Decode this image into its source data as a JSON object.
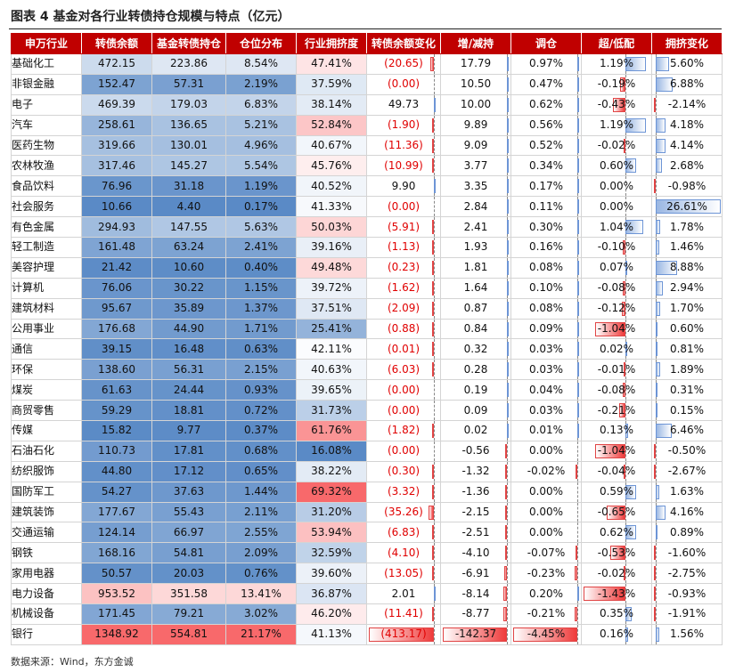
{
  "title": "图表 4  基金对各行业转债持仓规模与特点（亿元）",
  "source": "数据来源：Wind，东方金诚",
  "headers": [
    "申万行业",
    "转债余额",
    "基金转债持仓",
    "仓位分布",
    "行业拥挤度",
    "转债余额变化",
    "增/减持",
    "调仓",
    "超/低配",
    "拥挤变化"
  ],
  "rows": [
    {
      "name": "基础化工",
      "balance": "472.15",
      "holding": "223.86",
      "position": "8.54%",
      "crowd": "47.41%",
      "bal_chg": "(20.65)",
      "bal_chg_v": -20.65,
      "incdec": "17.79",
      "incdec_v": 17.79,
      "rebal": "0.97%",
      "rebal_v": 0.97,
      "over": "1.19%",
      "over_v": 1.19,
      "crowd_chg": "5.60%",
      "crowd_chg_v": 5.6
    },
    {
      "name": "非银金融",
      "balance": "152.47",
      "holding": "57.31",
      "position": "2.19%",
      "crowd": "37.59%",
      "bal_chg": "(0.00)",
      "bal_chg_v": 0,
      "incdec": "10.50",
      "incdec_v": 10.5,
      "rebal": "0.47%",
      "rebal_v": 0.47,
      "over": "-0.19%",
      "over_v": -0.19,
      "crowd_chg": "6.88%",
      "crowd_chg_v": 6.88
    },
    {
      "name": "电子",
      "balance": "469.39",
      "holding": "179.03",
      "position": "6.83%",
      "crowd": "38.14%",
      "bal_chg": "49.73",
      "bal_chg_v": 49.73,
      "incdec": "10.00",
      "incdec_v": 10.0,
      "rebal": "0.62%",
      "rebal_v": 0.62,
      "over": "-0.43%",
      "over_v": -0.43,
      "crowd_chg": "-2.14%",
      "crowd_chg_v": -2.14
    },
    {
      "name": "汽车",
      "balance": "258.61",
      "holding": "136.65",
      "position": "5.21%",
      "crowd": "52.84%",
      "bal_chg": "(1.90)",
      "bal_chg_v": -1.9,
      "incdec": "9.89",
      "incdec_v": 9.89,
      "rebal": "0.56%",
      "rebal_v": 0.56,
      "over": "1.19%",
      "over_v": 1.19,
      "crowd_chg": "4.18%",
      "crowd_chg_v": 4.18
    },
    {
      "name": "医药生物",
      "balance": "319.66",
      "holding": "130.01",
      "position": "4.96%",
      "crowd": "40.67%",
      "bal_chg": "(11.36)",
      "bal_chg_v": -11.36,
      "incdec": "9.09",
      "incdec_v": 9.09,
      "rebal": "0.52%",
      "rebal_v": 0.52,
      "over": "-0.02%",
      "over_v": -0.02,
      "crowd_chg": "4.14%",
      "crowd_chg_v": 4.14
    },
    {
      "name": "农林牧渔",
      "balance": "317.46",
      "holding": "145.27",
      "position": "5.54%",
      "crowd": "45.76%",
      "bal_chg": "(10.99)",
      "bal_chg_v": -10.99,
      "incdec": "3.77",
      "incdec_v": 3.77,
      "rebal": "0.34%",
      "rebal_v": 0.34,
      "over": "0.60%",
      "over_v": 0.6,
      "crowd_chg": "2.68%",
      "crowd_chg_v": 2.68
    },
    {
      "name": "食品饮料",
      "balance": "76.96",
      "holding": "31.18",
      "position": "1.19%",
      "crowd": "40.52%",
      "bal_chg": "9.90",
      "bal_chg_v": 9.9,
      "incdec": "3.35",
      "incdec_v": 3.35,
      "rebal": "0.17%",
      "rebal_v": 0.17,
      "over": "0.00%",
      "over_v": 0.0,
      "crowd_chg": "-0.98%",
      "crowd_chg_v": -0.98
    },
    {
      "name": "社会服务",
      "balance": "10.66",
      "holding": "4.40",
      "position": "0.17%",
      "crowd": "41.33%",
      "bal_chg": "(0.00)",
      "bal_chg_v": 0,
      "incdec": "2.84",
      "incdec_v": 2.84,
      "rebal": "0.11%",
      "rebal_v": 0.11,
      "over": "0.00%",
      "over_v": 0.0,
      "crowd_chg": "26.61%",
      "crowd_chg_v": 26.61
    },
    {
      "name": "有色金属",
      "balance": "294.93",
      "holding": "147.55",
      "position": "5.63%",
      "crowd": "50.03%",
      "bal_chg": "(5.91)",
      "bal_chg_v": -5.91,
      "incdec": "2.41",
      "incdec_v": 2.41,
      "rebal": "0.30%",
      "rebal_v": 0.3,
      "over": "1.04%",
      "over_v": 1.04,
      "crowd_chg": "1.78%",
      "crowd_chg_v": 1.78
    },
    {
      "name": "轻工制造",
      "balance": "161.48",
      "holding": "63.24",
      "position": "2.41%",
      "crowd": "39.16%",
      "bal_chg": "(1.13)",
      "bal_chg_v": -1.13,
      "incdec": "1.93",
      "incdec_v": 1.93,
      "rebal": "0.16%",
      "rebal_v": 0.16,
      "over": "-0.10%",
      "over_v": -0.1,
      "crowd_chg": "1.46%",
      "crowd_chg_v": 1.46
    },
    {
      "name": "美容护理",
      "balance": "21.42",
      "holding": "10.60",
      "position": "0.40%",
      "crowd": "49.48%",
      "bal_chg": "(0.23)",
      "bal_chg_v": -0.23,
      "incdec": "1.81",
      "incdec_v": 1.81,
      "rebal": "0.08%",
      "rebal_v": 0.08,
      "over": "0.07%",
      "over_v": 0.07,
      "crowd_chg": "8.88%",
      "crowd_chg_v": 8.88
    },
    {
      "name": "计算机",
      "balance": "76.06",
      "holding": "30.22",
      "position": "1.15%",
      "crowd": "39.72%",
      "bal_chg": "(1.62)",
      "bal_chg_v": -1.62,
      "incdec": "1.64",
      "incdec_v": 1.64,
      "rebal": "0.10%",
      "rebal_v": 0.1,
      "over": "-0.08%",
      "over_v": -0.08,
      "crowd_chg": "2.94%",
      "crowd_chg_v": 2.94
    },
    {
      "name": "建筑材料",
      "balance": "95.67",
      "holding": "35.89",
      "position": "1.37%",
      "crowd": "37.51%",
      "bal_chg": "(2.09)",
      "bal_chg_v": -2.09,
      "incdec": "0.87",
      "incdec_v": 0.87,
      "rebal": "0.08%",
      "rebal_v": 0.08,
      "over": "-0.12%",
      "over_v": -0.12,
      "crowd_chg": "1.70%",
      "crowd_chg_v": 1.7
    },
    {
      "name": "公用事业",
      "balance": "176.68",
      "holding": "44.90",
      "position": "1.71%",
      "crowd": "25.41%",
      "bal_chg": "(0.88)",
      "bal_chg_v": -0.88,
      "incdec": "0.84",
      "incdec_v": 0.84,
      "rebal": "0.09%",
      "rebal_v": 0.09,
      "over": "-1.04%",
      "over_v": -1.04,
      "crowd_chg": "0.60%",
      "crowd_chg_v": 0.6
    },
    {
      "name": "通信",
      "balance": "39.15",
      "holding": "16.48",
      "position": "0.63%",
      "crowd": "42.11%",
      "bal_chg": "(0.01)",
      "bal_chg_v": -0.01,
      "incdec": "0.32",
      "incdec_v": 0.32,
      "rebal": "0.03%",
      "rebal_v": 0.03,
      "over": "0.02%",
      "over_v": 0.02,
      "crowd_chg": "0.81%",
      "crowd_chg_v": 0.81
    },
    {
      "name": "环保",
      "balance": "138.60",
      "holding": "56.31",
      "position": "2.15%",
      "crowd": "40.63%",
      "bal_chg": "(6.03)",
      "bal_chg_v": -6.03,
      "incdec": "0.28",
      "incdec_v": 0.28,
      "rebal": "0.03%",
      "rebal_v": 0.03,
      "over": "-0.01%",
      "over_v": -0.01,
      "crowd_chg": "1.89%",
      "crowd_chg_v": 1.89
    },
    {
      "name": "煤炭",
      "balance": "61.63",
      "holding": "24.44",
      "position": "0.93%",
      "crowd": "39.65%",
      "bal_chg": "(0.00)",
      "bal_chg_v": 0,
      "incdec": "0.19",
      "incdec_v": 0.19,
      "rebal": "0.04%",
      "rebal_v": 0.04,
      "over": "-0.08%",
      "over_v": -0.08,
      "crowd_chg": "0.31%",
      "crowd_chg_v": 0.31
    },
    {
      "name": "商贸零售",
      "balance": "59.29",
      "holding": "18.81",
      "position": "0.72%",
      "crowd": "31.73%",
      "bal_chg": "(0.00)",
      "bal_chg_v": 0,
      "incdec": "0.09",
      "incdec_v": 0.09,
      "rebal": "0.03%",
      "rebal_v": 0.03,
      "over": "-0.21%",
      "over_v": -0.21,
      "crowd_chg": "0.15%",
      "crowd_chg_v": 0.15
    },
    {
      "name": "传媒",
      "balance": "15.82",
      "holding": "9.77",
      "position": "0.37%",
      "crowd": "61.76%",
      "bal_chg": "(1.82)",
      "bal_chg_v": -1.82,
      "incdec": "0.02",
      "incdec_v": 0.02,
      "rebal": "0.01%",
      "rebal_v": 0.01,
      "over": "0.13%",
      "over_v": 0.13,
      "crowd_chg": "6.46%",
      "crowd_chg_v": 6.46
    },
    {
      "name": "石油石化",
      "balance": "110.73",
      "holding": "17.81",
      "position": "0.68%",
      "crowd": "16.08%",
      "bal_chg": "(0.00)",
      "bal_chg_v": 0,
      "incdec": "-0.56",
      "incdec_v": -0.56,
      "rebal": "0.00%",
      "rebal_v": 0.0,
      "over": "-1.04%",
      "over_v": -1.04,
      "crowd_chg": "-0.50%",
      "crowd_chg_v": -0.5
    },
    {
      "name": "纺织服饰",
      "balance": "44.80",
      "holding": "17.12",
      "position": "0.65%",
      "crowd": "38.22%",
      "bal_chg": "(0.30)",
      "bal_chg_v": -0.3,
      "incdec": "-1.32",
      "incdec_v": -1.32,
      "rebal": "-0.02%",
      "rebal_v": -0.02,
      "over": "-0.04%",
      "over_v": -0.04,
      "crowd_chg": "-2.67%",
      "crowd_chg_v": -2.67
    },
    {
      "name": "国防军工",
      "balance": "54.27",
      "holding": "37.63",
      "position": "1.44%",
      "crowd": "69.32%",
      "bal_chg": "(3.32)",
      "bal_chg_v": -3.32,
      "incdec": "-1.36",
      "incdec_v": -1.36,
      "rebal": "0.00%",
      "rebal_v": 0.0,
      "over": "0.59%",
      "over_v": 0.59,
      "crowd_chg": "1.63%",
      "crowd_chg_v": 1.63
    },
    {
      "name": "建筑装饰",
      "balance": "177.67",
      "holding": "55.43",
      "position": "2.11%",
      "crowd": "31.20%",
      "bal_chg": "(35.26)",
      "bal_chg_v": -35.26,
      "incdec": "-2.15",
      "incdec_v": -2.15,
      "rebal": "0.00%",
      "rebal_v": 0.0,
      "over": "-0.65%",
      "over_v": -0.65,
      "crowd_chg": "4.16%",
      "crowd_chg_v": 4.16
    },
    {
      "name": "交通运输",
      "balance": "124.14",
      "holding": "66.97",
      "position": "2.55%",
      "crowd": "53.94%",
      "bal_chg": "(6.83)",
      "bal_chg_v": -6.83,
      "incdec": "-2.51",
      "incdec_v": -2.51,
      "rebal": "0.00%",
      "rebal_v": 0.0,
      "over": "0.62%",
      "over_v": 0.62,
      "crowd_chg": "0.89%",
      "crowd_chg_v": 0.89
    },
    {
      "name": "钢铁",
      "balance": "168.16",
      "holding": "54.81",
      "position": "2.09%",
      "crowd": "32.59%",
      "bal_chg": "(4.10)",
      "bal_chg_v": -4.1,
      "incdec": "-4.10",
      "incdec_v": -4.1,
      "rebal": "-0.07%",
      "rebal_v": -0.07,
      "over": "-0.53%",
      "over_v": -0.53,
      "crowd_chg": "-1.60%",
      "crowd_chg_v": -1.6
    },
    {
      "name": "家用电器",
      "balance": "50.57",
      "holding": "20.03",
      "position": "0.76%",
      "crowd": "39.60%",
      "bal_chg": "(13.05)",
      "bal_chg_v": -13.05,
      "incdec": "-6.91",
      "incdec_v": -6.91,
      "rebal": "-0.23%",
      "rebal_v": -0.23,
      "over": "-0.02%",
      "over_v": -0.02,
      "crowd_chg": "-2.75%",
      "crowd_chg_v": -2.75
    },
    {
      "name": "电力设备",
      "balance": "953.52",
      "holding": "351.58",
      "position": "13.41%",
      "crowd": "36.87%",
      "bal_chg": "2.01",
      "bal_chg_v": 2.01,
      "incdec": "-8.14",
      "incdec_v": -8.14,
      "rebal": "0.20%",
      "rebal_v": 0.2,
      "over": "-1.43%",
      "over_v": -1.43,
      "crowd_chg": "-0.93%",
      "crowd_chg_v": -0.93
    },
    {
      "name": "机械设备",
      "balance": "171.45",
      "holding": "79.21",
      "position": "3.02%",
      "crowd": "46.20%",
      "bal_chg": "(11.41)",
      "bal_chg_v": -11.41,
      "incdec": "-8.77",
      "incdec_v": -8.77,
      "rebal": "-0.21%",
      "rebal_v": -0.21,
      "over": "0.35%",
      "over_v": 0.35,
      "crowd_chg": "-1.91%",
      "crowd_chg_v": -1.91
    },
    {
      "name": "银行",
      "balance": "1348.92",
      "holding": "554.81",
      "position": "21.17%",
      "crowd": "41.13%",
      "bal_chg": "(413.17)",
      "bal_chg_v": -413.17,
      "incdec": "-142.37",
      "incdec_v": -142.37,
      "rebal": "-4.45%",
      "rebal_v": -4.45,
      "over": "0.16%",
      "over_v": 0.16,
      "crowd_chg": "1.56%",
      "crowd_chg_v": 1.56
    }
  ],
  "colors": {
    "header_bg": "#c00000",
    "red": "#f8696b",
    "blue": "#5a8ac6",
    "neg_text": "#e00000"
  }
}
